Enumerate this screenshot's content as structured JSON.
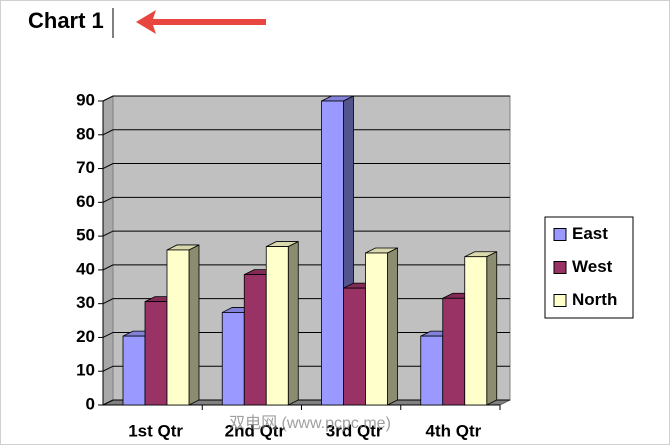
{
  "chart_data": {
    "type": "bar3d",
    "title": "Chart 1",
    "categories": [
      "1st Qtr",
      "2nd Qtr",
      "3rd Qtr",
      "4th Qtr"
    ],
    "series": [
      {
        "name": "East",
        "color": "#9999ff",
        "values": [
          20.4,
          27.4,
          90,
          20.4
        ]
      },
      {
        "name": "West",
        "color": "#993366",
        "values": [
          30.6,
          38.6,
          34.6,
          31.6
        ]
      },
      {
        "name": "North",
        "color": "#ffffcc",
        "values": [
          45.9,
          46.9,
          45,
          43.9
        ]
      }
    ],
    "ylim": [
      0,
      90
    ],
    "yticks": [
      0,
      10,
      20,
      30,
      40,
      50,
      60,
      70,
      80,
      90
    ],
    "grid": true,
    "legend": "right",
    "watermark": "双电网 (www.pcpc.me)"
  }
}
